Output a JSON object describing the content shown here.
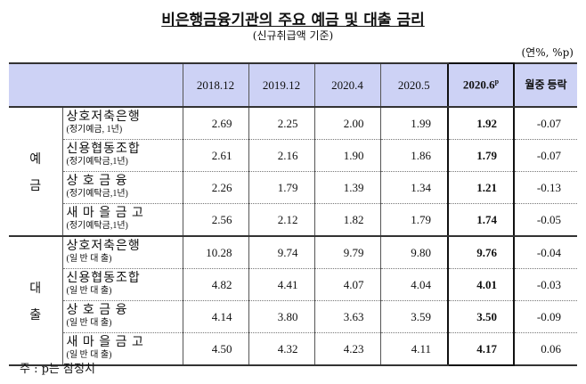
{
  "title": "비은행금융기관의 주요 예금 및 대출 금리",
  "subtitle": "(신규취급액 기준)",
  "unit": "(연%, %p)",
  "headers": [
    "2018.12",
    "2019.12",
    "2020.4",
    "2020.5",
    "2020.6",
    "월중 등락"
  ],
  "p_mark": "p",
  "groups": [
    {
      "label1": "예",
      "label2": "금",
      "rows": [
        {
          "name": "상호저축은행",
          "sub": "(정기예금, 1년)",
          "values": [
            "2.69",
            "2.25",
            "2.00",
            "1.99",
            "1.92",
            "-0.07"
          ]
        },
        {
          "name": "신용협동조합",
          "sub": "(정기예탁금,1년)",
          "values": [
            "2.61",
            "2.16",
            "1.90",
            "1.86",
            "1.79",
            "-0.07"
          ]
        },
        {
          "name": "상 호 금 융",
          "sub": "(정기예탁금,1년)",
          "values": [
            "2.26",
            "1.79",
            "1.39",
            "1.34",
            "1.21",
            "-0.13"
          ]
        },
        {
          "name": "새 마 을 금 고",
          "sub": "(정기예탁금,1년)",
          "values": [
            "2.56",
            "2.12",
            "1.82",
            "1.79",
            "1.74",
            "-0.05"
          ]
        }
      ]
    },
    {
      "label1": "대",
      "label2": "출",
      "rows": [
        {
          "name": "상호저축은행",
          "sub": "(일 반 대 출)",
          "values": [
            "10.28",
            "9.74",
            "9.79",
            "9.80",
            "9.76",
            "-0.04"
          ]
        },
        {
          "name": "신용협동조합",
          "sub": "(일 반 대 출)",
          "values": [
            "4.82",
            "4.41",
            "4.07",
            "4.04",
            "4.01",
            "-0.03"
          ]
        },
        {
          "name": "상 호 금 융",
          "sub": "(일 반 대 출)",
          "values": [
            "4.14",
            "3.80",
            "3.63",
            "3.59",
            "3.50",
            "-0.09"
          ]
        },
        {
          "name": "새 마 을 금 고",
          "sub": "(일 반 대 출)",
          "values": [
            "4.50",
            "4.32",
            "4.23",
            "4.11",
            "4.17",
            "0.06"
          ]
        }
      ]
    }
  ],
  "note": "주 : p는 잠정치"
}
